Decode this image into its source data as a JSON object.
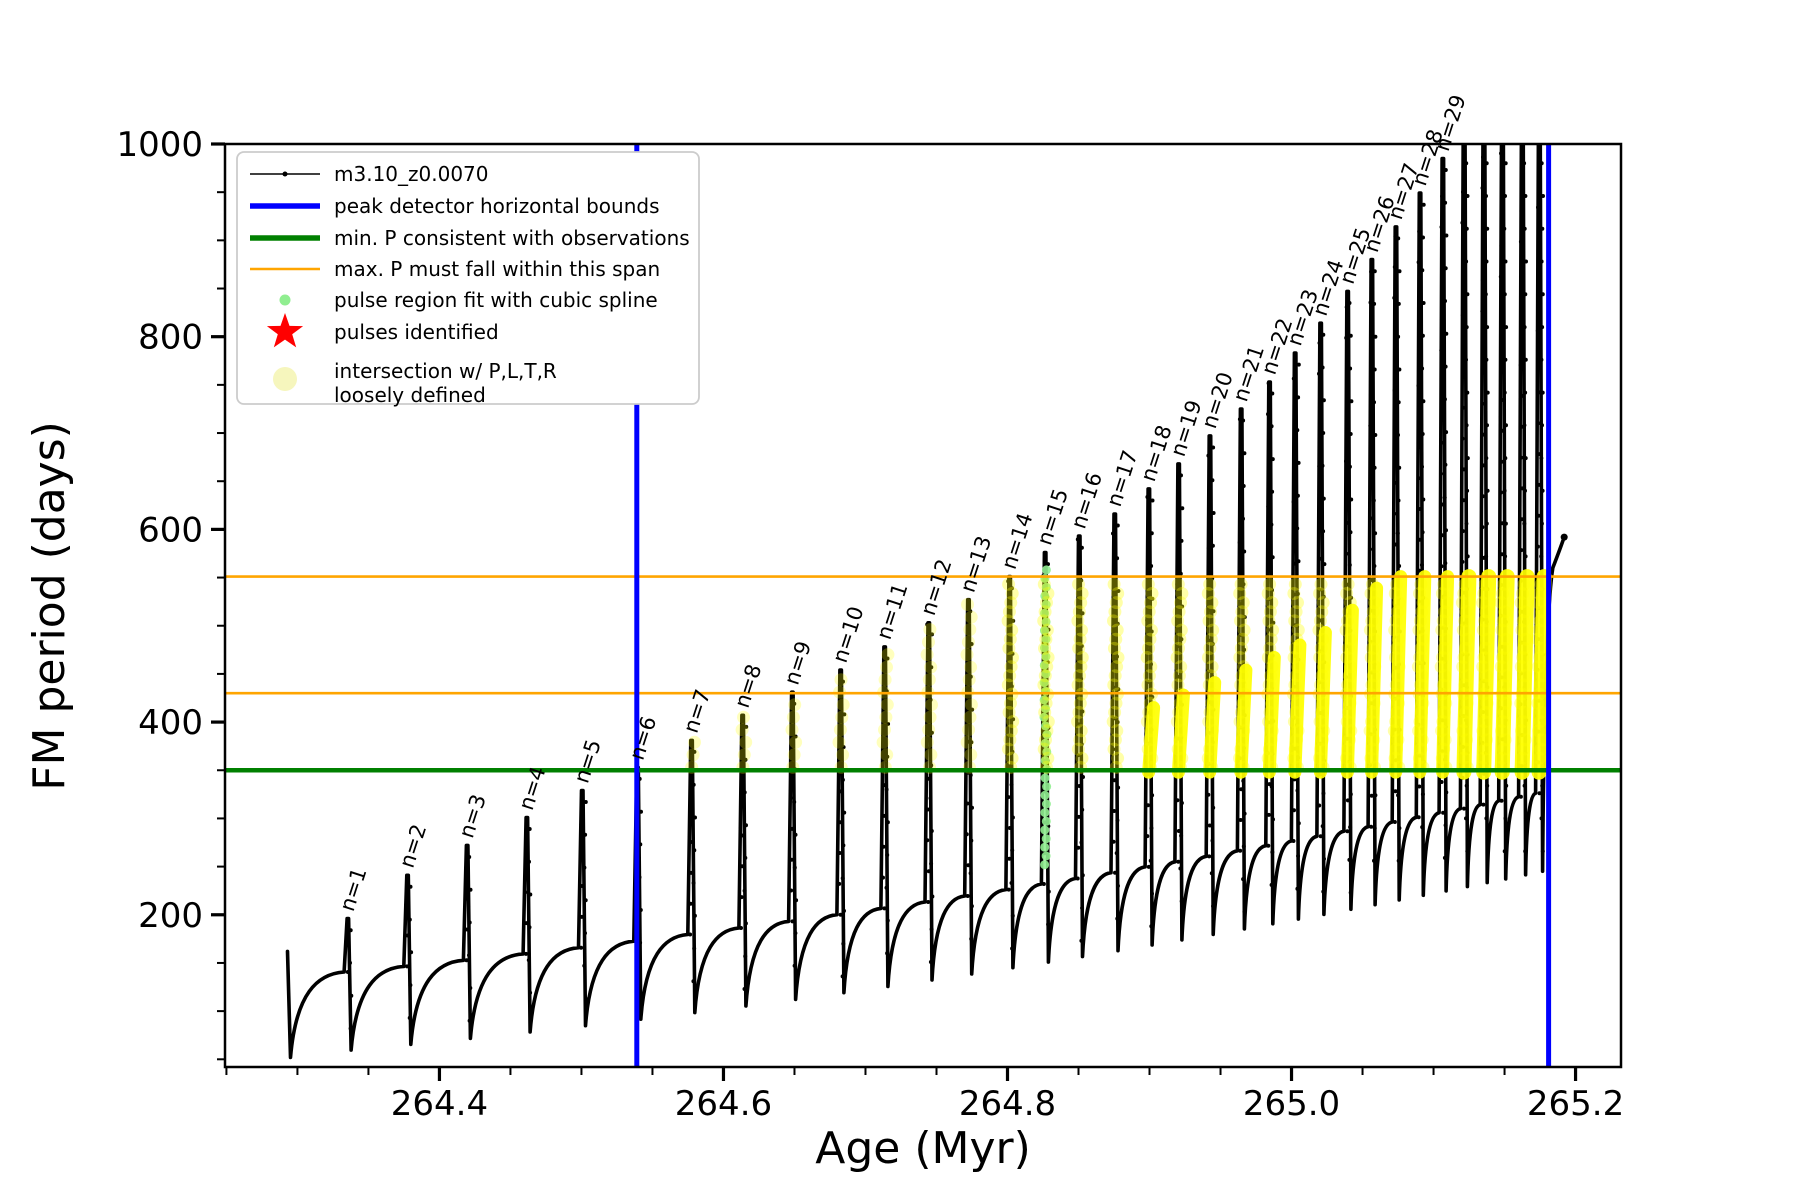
{
  "chart_data": {
    "type": "line",
    "title": "",
    "xlabel": "Age (Myr)",
    "ylabel": "FM period (days)",
    "xlim": [
      264.249,
      265.232
    ],
    "ylim": [
      42,
      1000
    ],
    "x_major_ticks": [
      264.4,
      264.6,
      264.8,
      265.0,
      265.2
    ],
    "x_minor_tick_start": 264.25,
    "x_minor_tick_step": 0.05,
    "y_major_ticks": [
      200,
      400,
      600,
      800,
      1000
    ],
    "y_minor_tick_start": 50,
    "y_minor_tick_step": 50,
    "grid": false,
    "legend": {
      "position": "upper left",
      "entries": [
        {
          "label": "m3.10_z0.0070",
          "marker": "line-dot",
          "color": "#000000"
        },
        {
          "label": "peak detector horizontal bounds",
          "marker": "thick-line",
          "color": "#0000ff"
        },
        {
          "label": "min. P consistent with observations",
          "marker": "thick-line",
          "color": "#008000"
        },
        {
          "label": "max. P must fall within this span",
          "marker": "line",
          "color": "#ffa500"
        },
        {
          "label": "pulse region fit with cubic spline",
          "marker": "dot",
          "color": "#90ee90"
        },
        {
          "label": "pulses identified",
          "marker": "star",
          "color": "#ff0000"
        },
        {
          "label": "intersection w/ P,L,T,R\nloosely defined",
          "marker": "big-dot",
          "color": "#f6f6bd"
        }
      ]
    },
    "reference_lines": {
      "blue_vertical_ages": [
        264.539,
        265.181
      ],
      "min_p_days": 350,
      "max_p_span_days": [
        430,
        551
      ]
    },
    "pulses": [
      {
        "n": 1,
        "age": 264.335,
        "peak": 196
      },
      {
        "n": 2,
        "age": 264.377,
        "peak": 241
      },
      {
        "n": 3,
        "age": 264.419,
        "peak": 272
      },
      {
        "n": 4,
        "age": 264.461,
        "peak": 301
      },
      {
        "n": 5,
        "age": 264.5,
        "peak": 329
      },
      {
        "n": 6,
        "age": 264.539,
        "peak": 353
      },
      {
        "n": 7,
        "age": 264.577,
        "peak": 381
      },
      {
        "n": 8,
        "age": 264.613,
        "peak": 407
      },
      {
        "n": 9,
        "age": 264.648,
        "peak": 431
      },
      {
        "n": 10,
        "age": 264.682,
        "peak": 454
      },
      {
        "n": 11,
        "age": 264.713,
        "peak": 478
      },
      {
        "n": 12,
        "age": 264.744,
        "peak": 503
      },
      {
        "n": 13,
        "age": 264.772,
        "peak": 527
      },
      {
        "n": 14,
        "age": 264.801,
        "peak": 551
      },
      {
        "n": 15,
        "age": 264.826,
        "peak": 576
      },
      {
        "n": 16,
        "age": 264.85,
        "peak": 593
      },
      {
        "n": 17,
        "age": 264.875,
        "peak": 616
      },
      {
        "n": 18,
        "age": 264.899,
        "peak": 642
      },
      {
        "n": 19,
        "age": 264.92,
        "peak": 668
      },
      {
        "n": 20,
        "age": 264.942,
        "peak": 697
      },
      {
        "n": 21,
        "age": 264.964,
        "peak": 725
      },
      {
        "n": 22,
        "age": 264.984,
        "peak": 753
      },
      {
        "n": 23,
        "age": 265.002,
        "peak": 783
      },
      {
        "n": 24,
        "age": 265.02,
        "peak": 814
      },
      {
        "n": 25,
        "age": 265.039,
        "peak": 847
      },
      {
        "n": 26,
        "age": 265.056,
        "peak": 880
      },
      {
        "n": 27,
        "age": 265.073,
        "peak": 914
      },
      {
        "n": 28,
        "age": 265.09,
        "peak": 949
      },
      {
        "n": 29,
        "age": 265.106,
        "peak": 985
      }
    ],
    "unlabeled_pulse_ages": [
      265.121,
      265.135,
      265.148,
      265.162,
      265.174
    ],
    "unlabeled_pulse_peak": 1060,
    "track": {
      "color": "#000000",
      "start_age": 264.293,
      "start_period": 162,
      "dip_start_days": 50,
      "dip_coeff_linear": 128,
      "dip_coeff_quad": 101,
      "hump_above_dip_days": 85,
      "end_hook": {
        "from_age": 265.176,
        "to_age": 265.192,
        "to_period": 592
      }
    },
    "spline_fit": {
      "pulse_n": 15,
      "age": 264.826,
      "period_range": [
        252,
        562
      ],
      "color": "#90ee90"
    },
    "yellow_intersection": {
      "color": "#ffff00",
      "base_days": 350,
      "top_limit_days": 551,
      "chain_from_n": 6,
      "dense_chain_from_n": 14,
      "band_from_n": 18
    }
  }
}
